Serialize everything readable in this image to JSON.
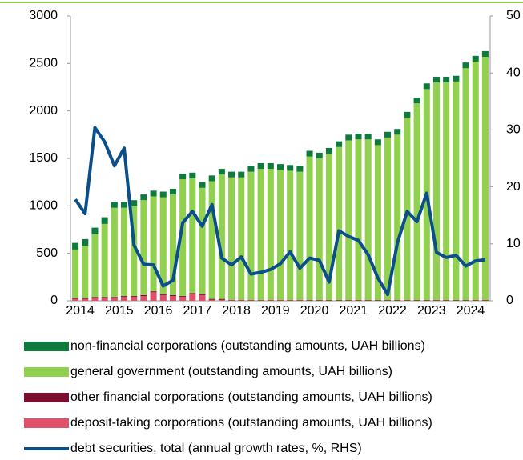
{
  "chart_data": {
    "type": "bar",
    "stacked": true,
    "categories": [
      "2014",
      null,
      null,
      null,
      "2015",
      null,
      null,
      null,
      "2016",
      null,
      null,
      null,
      "2017",
      null,
      null,
      null,
      "2018",
      null,
      null,
      null,
      "2019",
      null,
      null,
      null,
      "2020",
      null,
      null,
      null,
      "2021",
      null,
      null,
      null,
      "2022",
      null,
      null,
      null,
      "2023",
      null,
      null,
      null,
      "2024",
      null,
      null
    ],
    "series": [
      {
        "name": "non-financial corporations (outstanding amounts, UAH billions)",
        "color": "#0e7a3d",
        "values": [
          70,
          70,
          70,
          70,
          60,
          60,
          60,
          60,
          60,
          60,
          60,
          60,
          60,
          60,
          60,
          60,
          60,
          60,
          60,
          60,
          60,
          60,
          60,
          60,
          60,
          60,
          60,
          60,
          60,
          60,
          60,
          60,
          60,
          60,
          60,
          60,
          60,
          60,
          60,
          60,
          60,
          60,
          60
        ]
      },
      {
        "name": "general government (outstanding amounts, UAH billions)",
        "color": "#92d050",
        "values": [
          510,
          550,
          660,
          770,
          940,
          930,
          950,
          1000,
          1000,
          1020,
          1060,
          1230,
          1210,
          1120,
          1240,
          1310,
          1290,
          1290,
          1350,
          1380,
          1380,
          1370,
          1360,
          1350,
          1512,
          1492,
          1542,
          1612,
          1682,
          1692,
          1692,
          1632,
          1712,
          1742,
          1922,
          2072,
          2222,
          2292,
          2292,
          2302,
          2442,
          2512,
          2562
        ]
      },
      {
        "name": "other financial corporations (outstanding amounts, UAH billions)",
        "color": "#7b0d2e",
        "values": [
          10,
          10,
          10,
          10,
          10,
          10,
          10,
          10,
          10,
          10,
          10,
          10,
          10,
          10,
          10,
          10,
          5,
          5,
          5,
          5,
          5,
          5,
          5,
          5,
          5,
          5,
          5,
          5,
          5,
          5,
          5,
          5,
          5,
          5,
          5,
          5,
          5,
          5,
          5,
          5,
          5,
          5,
          5
        ]
      },
      {
        "name": "deposit-taking corporations (outstanding amounts, UAH billions)",
        "color": "#e0506a",
        "values": [
          20,
          20,
          30,
          30,
          30,
          40,
          40,
          50,
          90,
          60,
          50,
          40,
          70,
          60,
          10,
          10,
          5,
          5,
          5,
          5,
          5,
          5,
          5,
          5,
          3,
          3,
          3,
          3,
          3,
          3,
          3,
          3,
          3,
          3,
          3,
          3,
          3,
          3,
          3,
          3,
          3,
          3,
          3
        ]
      },
      {
        "name": "debt securities, total (annual growth rates, %, RHS)",
        "color": "#0b4f8a",
        "type": "line",
        "axis": "y2",
        "values": [
          17.8,
          15.3,
          30.4,
          27.9,
          23.7,
          26.8,
          9.8,
          6.4,
          6.3,
          2.6,
          3.6,
          13.7,
          15.7,
          13.1,
          16.9,
          7.5,
          6.3,
          7.7,
          4.7,
          5.0,
          5.5,
          6.5,
          8.6,
          5.7,
          7.5,
          7.1,
          3.3,
          12.3,
          11.3,
          10.6,
          8.1,
          4.0,
          1.1,
          10.2,
          15.7,
          13.9,
          18.9,
          8.5,
          7.6,
          8.0,
          6.1,
          7.0,
          7.2
        ]
      }
    ],
    "ylim": [
      0,
      3000
    ],
    "yticks": [
      0,
      500,
      1000,
      1500,
      2000,
      2500,
      3000
    ],
    "y2lim": [
      0,
      50
    ],
    "y2ticks": [
      0,
      10,
      20,
      30,
      40,
      50
    ]
  }
}
